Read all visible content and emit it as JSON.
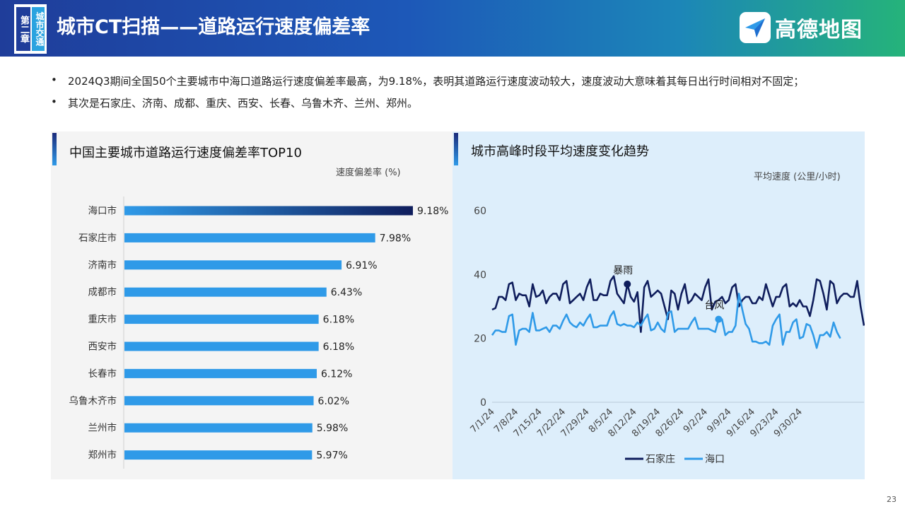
{
  "header": {
    "chapter_left": "第二章",
    "chapter_right": "城市交通",
    "title": "城市CT扫描——道路运行速度偏差率",
    "logo_text": "高德地图",
    "logo_icon": "paper-plane-icon",
    "gradient": [
      "#1f3d9a",
      "#1c86b8",
      "#25b37a"
    ]
  },
  "bullets": [
    "2024Q3期间全国50个主要城市中海口道路运行速度偏差率最高，为9.18%，表明其道路运行速度波动较大，速度波动大意味着其每日出行时间相对不固定；",
    "其次是石家庄、济南、成都、重庆、西安、长春、乌鲁木齐、兰州、郑州。"
  ],
  "left_panel": {
    "title": "中国主要城市道路运行速度偏差率TOP10",
    "unit": "速度偏差率 (%)"
  },
  "right_panel": {
    "title": "城市高峰时段平均速度变化趋势",
    "unit": "平均速度 (公里/小时)"
  },
  "page_number": "23",
  "chart_data": [
    {
      "type": "bar",
      "orientation": "horizontal",
      "categories": [
        "海口市",
        "石家庄市",
        "济南市",
        "成都市",
        "重庆市",
        "西安市",
        "长春市",
        "乌鲁木齐市",
        "兰州市",
        "郑州市"
      ],
      "values": [
        9.18,
        7.98,
        6.91,
        6.43,
        6.18,
        6.18,
        6.12,
        6.02,
        5.98,
        5.97
      ],
      "value_labels": [
        "9.18%",
        "7.98%",
        "6.91%",
        "6.43%",
        "6.18%",
        "6.18%",
        "6.12%",
        "6.02%",
        "5.98%",
        "5.97%"
      ],
      "xlim": [
        0,
        10
      ],
      "colors": {
        "bar": "#2f9ae8",
        "top_bar_end": "#0f1d5c"
      }
    },
    {
      "type": "line",
      "x_start": "2024-07-01",
      "x_ticks": [
        "7/1/24",
        "7/8/24",
        "7/15/24",
        "7/22/24",
        "7/29/24",
        "8/5/24",
        "8/12/24",
        "8/19/24",
        "8/26/24",
        "9/2/24",
        "9/9/24",
        "9/16/24",
        "9/23/24",
        "9/30/24"
      ],
      "yticks": [
        0,
        20,
        40,
        60
      ],
      "ylim": [
        0,
        60
      ],
      "series": [
        {
          "name": "石家庄",
          "color": "#0f1d5c",
          "values": [
            29,
            29.5,
            33,
            33,
            32,
            37,
            37.5,
            32,
            34,
            33.5,
            33.5,
            30,
            37,
            33,
            33.5,
            35,
            31,
            33,
            34,
            34,
            32,
            37,
            38,
            31,
            32,
            33,
            34,
            32,
            36,
            38.5,
            32,
            32,
            34,
            33.5,
            33.5,
            38,
            39.5,
            34,
            32.5,
            31,
            37,
            33,
            31.5,
            34.5,
            22,
            36,
            38,
            33,
            34,
            35,
            34,
            30,
            26,
            35,
            34,
            29,
            34,
            37,
            31,
            32,
            34,
            33,
            32,
            36,
            38.5,
            29,
            31.5,
            32,
            33,
            31,
            32,
            36,
            37,
            30,
            32,
            33,
            33,
            31,
            31,
            33,
            32,
            37,
            33.5,
            30,
            33,
            33,
            36,
            37,
            30,
            31,
            30,
            32,
            30,
            30,
            27,
            32,
            38.5,
            38,
            34,
            29,
            38,
            37,
            31,
            33,
            34,
            34,
            33,
            33,
            38,
            30,
            24
          ]
        },
        {
          "name": "海口",
          "color": "#2f9ae8",
          "values": [
            21,
            22.5,
            22.5,
            22,
            22,
            27,
            27.5,
            18,
            22.5,
            23,
            23,
            22,
            28,
            22.5,
            22.5,
            23,
            23.5,
            22,
            24,
            24,
            23,
            25.5,
            27.5,
            25,
            24,
            23.5,
            25,
            24,
            26,
            27.5,
            23.5,
            23.5,
            24,
            24,
            24,
            27,
            28.5,
            24.5,
            24,
            24.5,
            24,
            24,
            23.5,
            25,
            24,
            26,
            27.5,
            22.5,
            23,
            25,
            23,
            22,
            28,
            28.5,
            22,
            23,
            23,
            23,
            23,
            25,
            26.5,
            23,
            23,
            23,
            23,
            22.5,
            22,
            26,
            26,
            21,
            22,
            22,
            24,
            34,
            29,
            24.5,
            23,
            19,
            19,
            18.5,
            18.5,
            19,
            18,
            24,
            26,
            27.5,
            18,
            22,
            22,
            25,
            26,
            20,
            20.5,
            24.5,
            24,
            21,
            17,
            21,
            21,
            22,
            20.5,
            25,
            22,
            20
          ],
          "dot_color": "#2f9ae8"
        }
      ],
      "annotations": [
        {
          "text": "暴雨",
          "series": "石家庄",
          "date": "2024-08-10"
        },
        {
          "text": "台风",
          "series": "海口",
          "date": "2024-09-06"
        }
      ],
      "legend": "bottom-center"
    }
  ]
}
